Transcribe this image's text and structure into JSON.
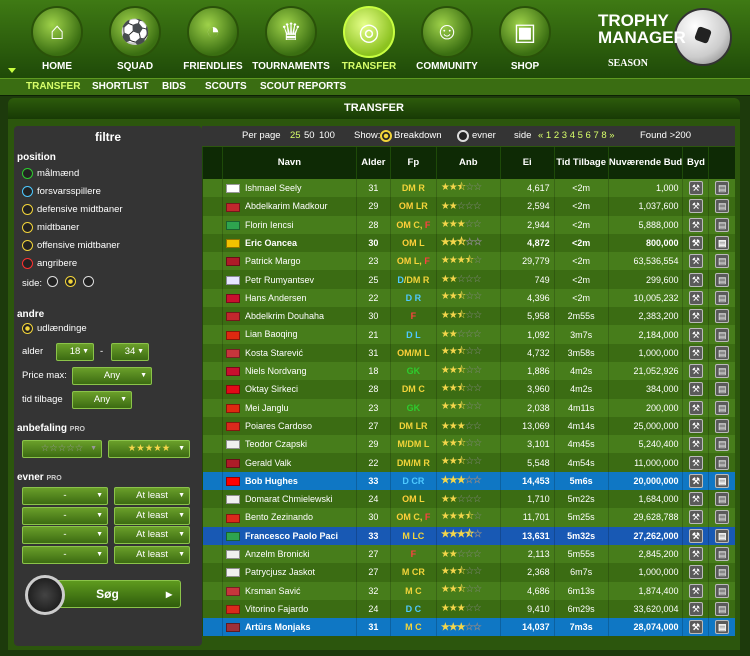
{
  "nav": {
    "items": [
      {
        "label": "HOME",
        "icon": "home-icon",
        "active": false
      },
      {
        "label": "SQUAD",
        "icon": "squad-icon",
        "active": false
      },
      {
        "label": "FRIENDLIES",
        "icon": "whistle-icon",
        "active": false
      },
      {
        "label": "TOURNAMENTS",
        "icon": "trophy-icon",
        "active": false
      },
      {
        "label": "TRANSFER",
        "icon": "binoculars-icon",
        "active": true
      },
      {
        "label": "COMMUNITY",
        "icon": "community-icon",
        "active": false
      },
      {
        "label": "SHOP",
        "icon": "shop-icon",
        "active": false
      }
    ]
  },
  "logo": {
    "line1": "TROPHY",
    "line2": "MANAGER",
    "sub": "SEASON"
  },
  "subnav": {
    "items": [
      "TRANSFER",
      "SHORTLIST",
      "BIDS",
      "SCOUTS",
      "SCOUT REPORTS"
    ]
  },
  "page_title": "TRANSFER",
  "filter": {
    "title": "filtre",
    "position_label": "position",
    "positions": [
      {
        "label": "målmænd",
        "color": "#2ecc2e"
      },
      {
        "label": "forsvarsspillere",
        "color": "#4ec9ff"
      },
      {
        "label": "defensive midtbaner",
        "color": "#f2d43a"
      },
      {
        "label": "midtbaner",
        "color": "#f2d43a"
      },
      {
        "label": "offensive midtbaner",
        "color": "#f2d43a"
      },
      {
        "label": "angribere",
        "color": "#ff3030"
      }
    ],
    "side_label": "side:",
    "andre_label": "andre",
    "udl_label": "udlændinge",
    "alder_label": "alder",
    "alder_min": "18",
    "alder_max": "34",
    "dash": "-",
    "price_label": "Price max:",
    "price_value": "Any",
    "tid_label": "tid tilbage",
    "tid_value": "Any",
    "anbefaling_label": "anbefaling",
    "pro": "PRO",
    "anb_min": "☆☆☆☆☆",
    "anb_max": "★★★★★",
    "evner_label": "evner",
    "evner": [
      {
        "skill": "-",
        "cmp": "At least"
      },
      {
        "skill": "-",
        "cmp": "At least"
      },
      {
        "skill": "-",
        "cmp": "At least"
      },
      {
        "skill": "-",
        "cmp": "At least"
      }
    ],
    "search_label": "Søg",
    "search_arrow": "▸"
  },
  "pager": {
    "perpage_label": "Per page",
    "perpage": [
      "25",
      "50",
      "100"
    ],
    "show_label": "Show:",
    "breakdown": "Breakdown",
    "evner": "evner",
    "side_label": "side",
    "pages": "« 1 2 3 4 5 6 7 8 »",
    "found": "Found >200"
  },
  "columns": [
    "Navn",
    "Alder",
    "Fp",
    "Anb",
    "Ei",
    "Tid Tilbage",
    "Nuværende Bud",
    "Byd"
  ],
  "rows": [
    {
      "flag": "eng",
      "name": "Ishmael Seely",
      "age": "31",
      "pos": [
        [
          "DM",
          "pDM"
        ],
        [
          " R",
          "pDM"
        ]
      ],
      "stars": "2.5",
      "ei": "4,617",
      "tid": "<2m",
      "bud": "1,000"
    },
    {
      "flag": "mc",
      "name": "Abdelkarim Madkour",
      "age": "29",
      "pos": [
        [
          "OM",
          "pO"
        ],
        [
          " LR",
          "pM"
        ]
      ],
      "stars": "2",
      "ei": "2,594",
      "tid": "<2m",
      "bud": "1,037,600"
    },
    {
      "flag": "it",
      "name": "Florin Iencsi",
      "age": "28",
      "pos": [
        [
          "OM",
          "pO"
        ],
        [
          " C,",
          "pM"
        ],
        [
          " F",
          "pF"
        ]
      ],
      "stars": "3",
      "ei": "2,944",
      "tid": "<2m",
      "bud": "5,888,000"
    },
    {
      "flag": "ro",
      "name": "Eric Oancea",
      "age": "30",
      "pos": [
        [
          "OM",
          "pO"
        ],
        [
          " L",
          "pM"
        ]
      ],
      "stars": "2.5",
      "ei": "4,872",
      "tid": "<2m",
      "bud": "800,000",
      "bold": true
    },
    {
      "flag": "nl",
      "name": "Patrick Margo",
      "age": "23",
      "pos": [
        [
          "OM",
          "pO"
        ],
        [
          " L,",
          "pM"
        ],
        [
          " F",
          "pF"
        ]
      ],
      "stars": "3.5",
      "ei": "29,779",
      "tid": "<2m",
      "bud": "63,536,554"
    },
    {
      "flag": "ru",
      "name": "Petr Rumyantsev",
      "age": "25",
      "pos": [
        [
          "D",
          "pD"
        ],
        [
          "/DM",
          "pDM"
        ],
        [
          " R",
          "pDM"
        ]
      ],
      "stars": "2",
      "ei": "749",
      "tid": "<2m",
      "bud": "299,600"
    },
    {
      "flag": "dk",
      "name": "Hans Andersen",
      "age": "22",
      "pos": [
        [
          "D",
          "pD"
        ],
        [
          " R",
          "pD"
        ]
      ],
      "stars": "2.5",
      "ei": "4,396",
      "tid": "<2m",
      "bud": "10,005,232"
    },
    {
      "flag": "mc",
      "name": "Abdelkrim Douhaha",
      "age": "30",
      "pos": [
        [
          "F",
          "pF"
        ]
      ],
      "stars": "2.5",
      "ei": "5,958",
      "tid": "2m55s",
      "bud": "2,383,200"
    },
    {
      "flag": "hk",
      "name": "Lian Baoqing",
      "age": "21",
      "pos": [
        [
          "D",
          "pD"
        ],
        [
          " L",
          "pD"
        ]
      ],
      "stars": "2",
      "ei": "1,092",
      "tid": "3m7s",
      "bud": "2,184,000"
    },
    {
      "flag": "rs",
      "name": "Kosta Starević",
      "age": "31",
      "pos": [
        [
          "OM",
          "pO"
        ],
        [
          "/M",
          "pM"
        ],
        [
          " L",
          "pM"
        ]
      ],
      "stars": "2.5",
      "ei": "4,732",
      "tid": "3m58s",
      "bud": "1,000,000"
    },
    {
      "flag": "dk",
      "name": "Niels Nordvang",
      "age": "18",
      "pos": [
        [
          "GK",
          "pG"
        ]
      ],
      "stars": "2.5",
      "ei": "1,886",
      "tid": "4m2s",
      "bud": "21,052,926"
    },
    {
      "flag": "tr",
      "name": "Oktay Sirkeci",
      "age": "28",
      "pos": [
        [
          "DM",
          "pDM"
        ],
        [
          " C",
          "pDM"
        ]
      ],
      "stars": "2.5",
      "ei": "3,960",
      "tid": "4m2s",
      "bud": "384,000"
    },
    {
      "flag": "hk",
      "name": "Mei Janglu",
      "age": "23",
      "pos": [
        [
          "GK",
          "pG"
        ]
      ],
      "stars": "2.5",
      "ei": "2,038",
      "tid": "4m11s",
      "bud": "200,000"
    },
    {
      "flag": "pt",
      "name": "Poiares Cardoso",
      "age": "27",
      "pos": [
        [
          "DM",
          "pDM"
        ],
        [
          " LR",
          "pDM"
        ]
      ],
      "stars": "3",
      "ei": "13,069",
      "tid": "4m14s",
      "bud": "25,000,000"
    },
    {
      "flag": "pl",
      "name": "Teodor Czapski",
      "age": "29",
      "pos": [
        [
          "M",
          "pM"
        ],
        [
          "/DM",
          "pDM"
        ],
        [
          " L",
          "pM"
        ]
      ],
      "stars": "2.5",
      "ei": "3,101",
      "tid": "4m45s",
      "bud": "5,240,400"
    },
    {
      "flag": "nl",
      "name": "Gerald Valk",
      "age": "22",
      "pos": [
        [
          "DM",
          "pDM"
        ],
        [
          "/M",
          "pM"
        ],
        [
          " R",
          "pM"
        ]
      ],
      "stars": "2.5",
      "ei": "5,548",
      "tid": "4m54s",
      "bud": "11,000,000"
    },
    {
      "flag": "ca",
      "name": "Bob Hughes",
      "age": "33",
      "pos": [
        [
          "D",
          "pD"
        ],
        [
          " CR",
          "pD"
        ]
      ],
      "stars": "3",
      "ei": "14,453",
      "tid": "5m6s",
      "bud": "20,000,000",
      "hi": "hi"
    },
    {
      "flag": "pl",
      "name": "Domarat Chmielewski",
      "age": "24",
      "pos": [
        [
          "OM",
          "pO"
        ],
        [
          " L",
          "pM"
        ]
      ],
      "stars": "2",
      "ei": "1,710",
      "tid": "5m22s",
      "bud": "1,684,000"
    },
    {
      "flag": "pt",
      "name": "Bento Zezinando",
      "age": "30",
      "pos": [
        [
          "OM",
          "pO"
        ],
        [
          " C,",
          "pM"
        ],
        [
          " F",
          "pF"
        ]
      ],
      "stars": "3.5",
      "ei": "11,701",
      "tid": "5m25s",
      "bud": "29,628,788"
    },
    {
      "flag": "it",
      "name": "Francesco Paolo Paci",
      "age": "33",
      "pos": [
        [
          "M",
          "pM"
        ],
        [
          " LC",
          "pM"
        ]
      ],
      "stars": "3.5",
      "ei": "13,631",
      "tid": "5m32s",
      "bud": "27,262,000",
      "hi": "hi2"
    },
    {
      "flag": "pl",
      "name": "Anzelm Bronicki",
      "age": "27",
      "pos": [
        [
          "F",
          "pF"
        ]
      ],
      "stars": "2",
      "ei": "2,113",
      "tid": "5m55s",
      "bud": "2,845,200"
    },
    {
      "flag": "pl",
      "name": "Patrycjusz Jaskot",
      "age": "27",
      "pos": [
        [
          "M",
          "pM"
        ],
        [
          " CR",
          "pM"
        ]
      ],
      "stars": "2.5",
      "ei": "2,368",
      "tid": "6m7s",
      "bud": "1,000,000"
    },
    {
      "flag": "rs",
      "name": "Krsman Savić",
      "age": "32",
      "pos": [
        [
          "M",
          "pM"
        ],
        [
          " C",
          "pM"
        ]
      ],
      "stars": "2.5",
      "ei": "4,686",
      "tid": "6m13s",
      "bud": "1,874,400"
    },
    {
      "flag": "pt",
      "name": "Vitorino Fajardo",
      "age": "24",
      "pos": [
        [
          "D",
          "pD"
        ],
        [
          " C",
          "pD"
        ]
      ],
      "stars": "3",
      "ei": "9,410",
      "tid": "6m29s",
      "bud": "33,620,004"
    },
    {
      "flag": "lv",
      "name": "Artūrs Monjaks",
      "age": "31",
      "pos": [
        [
          "M",
          "pM"
        ],
        [
          " C",
          "pM"
        ]
      ],
      "stars": "3",
      "ei": "14,037",
      "tid": "7m3s",
      "bud": "28,074,000",
      "hi": "hi"
    }
  ],
  "flags": {
    "eng": "#ffffff",
    "mc": "#c1272d",
    "it": "#2ea44f",
    "ro": "#f2c200",
    "nl": "#ae1c28",
    "ru": "#e6e6ff",
    "dk": "#c8102e",
    "hk": "#de2910",
    "rs": "#c6363c",
    "tr": "#e30a17",
    "pt": "#da291c",
    "pl": "#f0f0f0",
    "ca": "#ff0000",
    "lv": "#9e3039"
  }
}
